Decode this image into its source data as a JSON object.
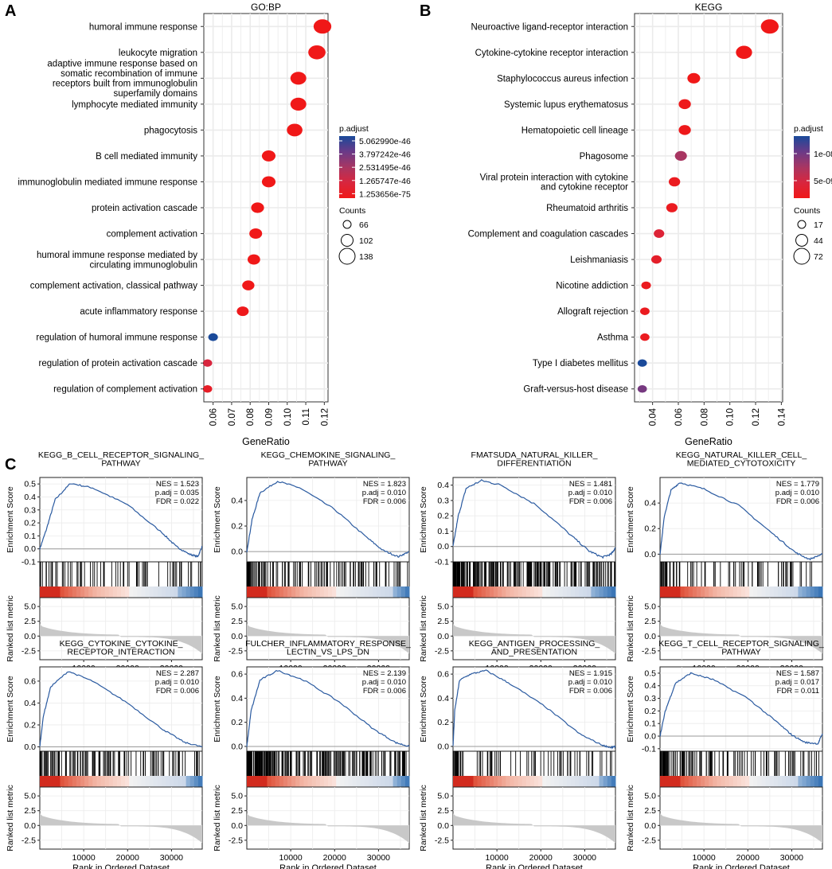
{
  "panels": {
    "A": {
      "letter": "A",
      "chart_data": {
        "type": "scatter",
        "title": "GO:BP",
        "xlabel": "GeneRatio",
        "xlim": [
          0.055,
          0.122
        ],
        "xticks": [
          0.06,
          0.07,
          0.08,
          0.09,
          0.1,
          0.11,
          0.12
        ],
        "xtick_labels": [
          "0.06",
          "0.07",
          "0.08",
          "0.09",
          "0.10",
          "0.11",
          "0.12"
        ],
        "terms": [
          {
            "label": "humoral immune response",
            "x": 0.119,
            "count": 138,
            "padj_rank": 0.0
          },
          {
            "label": "leukocyte migration",
            "x": 0.116,
            "count": 134,
            "padj_rank": 0.0
          },
          {
            "label": "adaptive immune response based on somatic recombination of immune receptors built from immunoglobulin superfamily domains",
            "x": 0.106,
            "count": 122,
            "padj_rank": 0.0
          },
          {
            "label": "lymphocyte mediated immunity",
            "x": 0.106,
            "count": 122,
            "padj_rank": 0.0
          },
          {
            "label": "phagocytosis",
            "x": 0.104,
            "count": 120,
            "padj_rank": 0.0
          },
          {
            "label": "B cell mediated immunity",
            "x": 0.09,
            "count": 103,
            "padj_rank": 0.0
          },
          {
            "label": "immunoglobulin mediated immune response",
            "x": 0.09,
            "count": 103,
            "padj_rank": 0.0
          },
          {
            "label": "protein activation cascade",
            "x": 0.084,
            "count": 97,
            "padj_rank": 0.0
          },
          {
            "label": "complement activation",
            "x": 0.083,
            "count": 96,
            "padj_rank": 0.0
          },
          {
            "label": "humoral immune response mediated by circulating immunoglobulin",
            "x": 0.082,
            "count": 94,
            "padj_rank": 0.0
          },
          {
            "label": "complement activation, classical pathway",
            "x": 0.079,
            "count": 91,
            "padj_rank": 0.0
          },
          {
            "label": "acute inflammatory response",
            "x": 0.076,
            "count": 88,
            "padj_rank": 0.02
          },
          {
            "label": "regulation of humoral immune response",
            "x": 0.06,
            "count": 69,
            "padj_rank": 1.0
          },
          {
            "label": "regulation of protein activation cascade",
            "x": 0.057,
            "count": 66,
            "padj_rank": 0.25
          },
          {
            "label": "regulation of complement activation",
            "x": 0.057,
            "count": 66,
            "padj_rank": 0.1
          }
        ],
        "legend_color": {
          "title": "p.adjust",
          "labels": [
            "5.062990e-46",
            "3.797242e-46",
            "2.531495e-46",
            "1.265747e-46",
            "1.253656e-75"
          ],
          "colors": [
            "#1a4a9a",
            "#6a3a88",
            "#a83662",
            "#d8263e",
            "#f01818"
          ]
        },
        "legend_size": {
          "title": "Counts",
          "values": [
            66,
            102,
            138
          ],
          "labels": [
            "66",
            "102",
            "138"
          ]
        }
      }
    },
    "B": {
      "letter": "B",
      "chart_data": {
        "type": "scatter",
        "title": "KEGG",
        "xlabel": "GeneRatio",
        "xlim": [
          0.026,
          0.141
        ],
        "xticks": [
          0.04,
          0.06,
          0.08,
          0.1,
          0.12,
          0.14
        ],
        "xtick_labels": [
          "0.04",
          "0.06",
          "0.08",
          "0.10",
          "0.12",
          "0.14"
        ],
        "terms": [
          {
            "label": "Neuroactive ligand-receptor interaction",
            "x": 0.131,
            "count": 72,
            "padj_rank": 0.0
          },
          {
            "label": "Cytokine-cytokine receptor interaction",
            "x": 0.111,
            "count": 62,
            "padj_rank": 0.0
          },
          {
            "label": "Staphylococcus aureus infection",
            "x": 0.072,
            "count": 40,
            "padj_rank": 0.0
          },
          {
            "label": "Systemic lupus erythematosus",
            "x": 0.065,
            "count": 36,
            "padj_rank": 0.02
          },
          {
            "label": "Hematopoietic cell lineage",
            "x": 0.065,
            "count": 36,
            "padj_rank": 0.02
          },
          {
            "label": "Phagosome",
            "x": 0.062,
            "count": 35,
            "padj_rank": 0.5
          },
          {
            "label": "Viral protein interaction with cytokine and cytokine receptor",
            "x": 0.057,
            "count": 31,
            "padj_rank": 0.05
          },
          {
            "label": "Rheumatoid arthritis",
            "x": 0.055,
            "count": 30,
            "padj_rank": 0.05
          },
          {
            "label": "Complement and coagulation cascades",
            "x": 0.045,
            "count": 25,
            "padj_rank": 0.2
          },
          {
            "label": "Leishmaniasis",
            "x": 0.043,
            "count": 24,
            "padj_rank": 0.12
          },
          {
            "label": "Nicotine addiction",
            "x": 0.035,
            "count": 19,
            "padj_rank": 0.05
          },
          {
            "label": "Allograft rejection",
            "x": 0.034,
            "count": 18,
            "padj_rank": 0.05
          },
          {
            "label": "Asthma",
            "x": 0.034,
            "count": 17,
            "padj_rank": 0.05
          },
          {
            "label": "Type I diabetes mellitus",
            "x": 0.032,
            "count": 17,
            "padj_rank": 1.0
          },
          {
            "label": "Graft-versus-host disease",
            "x": 0.032,
            "count": 17,
            "padj_rank": 0.7
          }
        ],
        "legend_color": {
          "title": "p.adjust",
          "labels": [
            "1e-08",
            "5e-09"
          ],
          "colors": [
            "#1a4a9a",
            "#6a3a88",
            "#a83662",
            "#d8263e",
            "#f01818"
          ]
        },
        "legend_size": {
          "title": "Counts",
          "values": [
            17,
            44,
            72
          ],
          "labels": [
            "17",
            "44",
            "72"
          ]
        }
      }
    },
    "C": {
      "letter": "C",
      "chart_data": [
        {
          "type": "line",
          "title": [
            "KEGG_B_CELL_RECEPTOR_SIGNALING_",
            "PATHWAY"
          ],
          "nes": "NES = 1.523",
          "padj": "p.adj = 0.035",
          "fdr": "FDR = 0.022",
          "ylim": [
            -0.1,
            0.55
          ],
          "yticks": [
            0.5,
            0.4,
            0.3,
            0.2,
            0.1,
            0.0,
            -0.1
          ],
          "ytick_labels": [
            "0.5",
            "0.4",
            "0.3",
            "0.2",
            "0.1",
            "0.0",
            "-0.1"
          ],
          "peak_rank": 7000,
          "peak_es": 0.505,
          "curve": [
            [
              0,
              0.0
            ],
            [
              1500,
              0.15
            ],
            [
              3500,
              0.38
            ],
            [
              7000,
              0.505
            ],
            [
              12000,
              0.47
            ],
            [
              20000,
              0.34
            ],
            [
              28000,
              0.12
            ],
            [
              31000,
              0.02
            ],
            [
              34000,
              -0.04
            ],
            [
              36000,
              -0.06
            ],
            [
              37000,
              0.02
            ]
          ],
          "bar_density": "medium",
          "blue_frac": 0.85
        },
        {
          "type": "line",
          "title": [
            "KEGG_CHEMOKINE_SIGNALING_",
            "PATHWAY"
          ],
          "nes": "NES = 1.823",
          "padj": "p.adj = 0.010",
          "fdr": "FDR = 0.006",
          "ylim": [
            -0.08,
            0.58
          ],
          "yticks": [
            0.4,
            0.2,
            0.0
          ],
          "ytick_labels": [
            "0.4",
            "0.2",
            "0.0"
          ],
          "peak_rank": 7000,
          "peak_es": 0.55,
          "curve": [
            [
              0,
              0.0
            ],
            [
              1200,
              0.25
            ],
            [
              3000,
              0.46
            ],
            [
              7000,
              0.55
            ],
            [
              12000,
              0.5
            ],
            [
              20000,
              0.33
            ],
            [
              27000,
              0.12
            ],
            [
              31000,
              0.01
            ],
            [
              34500,
              -0.04
            ],
            [
              37000,
              0.0
            ]
          ],
          "bar_density": "high",
          "blue_frac": 0.9
        },
        {
          "type": "line",
          "title": [
            "FMATSUDA_NATURAL_KILLER_",
            "DIFFERENTIATION"
          ],
          "nes": "NES = 1.481",
          "padj": "p.adj = 0.010",
          "fdr": "FDR = 0.006",
          "ylim": [
            -0.1,
            0.45
          ],
          "yticks": [
            0.4,
            0.3,
            0.2,
            0.1,
            0.0,
            -0.1
          ],
          "ytick_labels": [
            "0.4",
            "0.3",
            "0.2",
            "0.1",
            "0.0",
            "-0.1"
          ],
          "peak_rank": 6500,
          "peak_es": 0.43,
          "curve": [
            [
              0,
              0.0
            ],
            [
              1200,
              0.2
            ],
            [
              3000,
              0.38
            ],
            [
              6500,
              0.43
            ],
            [
              11000,
              0.4
            ],
            [
              19000,
              0.27
            ],
            [
              27000,
              0.07
            ],
            [
              31000,
              -0.03
            ],
            [
              34000,
              -0.07
            ],
            [
              36000,
              -0.05
            ],
            [
              37000,
              -0.01
            ]
          ],
          "bar_density": "very-high",
          "blue_frac": 0.85
        },
        {
          "type": "line",
          "title": [
            "KEGG_NATURAL_KILLER_CELL_",
            "MEDIATED_CYTOTOXICITY"
          ],
          "nes": "NES = 1.779",
          "padj": "p.adj = 0.010",
          "fdr": "FDR = 0.006",
          "ylim": [
            -0.06,
            0.6
          ],
          "yticks": [
            0.4,
            0.2,
            0.0
          ],
          "ytick_labels": [
            "0.4",
            "0.2",
            "0.0"
          ],
          "peak_rank": 4500,
          "peak_es": 0.56,
          "curve": [
            [
              0,
              0.0
            ],
            [
              1000,
              0.3
            ],
            [
              2500,
              0.5
            ],
            [
              4500,
              0.56
            ],
            [
              10000,
              0.51
            ],
            [
              18000,
              0.38
            ],
            [
              26000,
              0.15
            ],
            [
              31000,
              0.01
            ],
            [
              34000,
              -0.04
            ],
            [
              37000,
              0.0
            ]
          ],
          "bar_density": "medium",
          "blue_frac": 0.85
        },
        {
          "type": "line",
          "title": [
            "KEGG_CYTOKINE_CYTOKINE_",
            "RECEPTOR_INTERACTION"
          ],
          "nes": "NES = 2.287",
          "padj": "p.adj = 0.010",
          "fdr": "FDR = 0.006",
          "ylim": [
            -0.04,
            0.73
          ],
          "yticks": [
            0.6,
            0.4,
            0.2,
            0.0
          ],
          "ytick_labels": [
            "0.6",
            "0.4",
            "0.2",
            "0.0"
          ],
          "peak_rank": 6500,
          "peak_es": 0.69,
          "curve": [
            [
              0,
              0.0
            ],
            [
              800,
              0.28
            ],
            [
              2500,
              0.55
            ],
            [
              6500,
              0.69
            ],
            [
              12000,
              0.6
            ],
            [
              20000,
              0.4
            ],
            [
              28000,
              0.16
            ],
            [
              33000,
              0.04
            ],
            [
              37000,
              0.0
            ]
          ],
          "bar_density": "high",
          "blue_frac": 0.9
        },
        {
          "type": "line",
          "title": [
            "FULCHER_INFLAMMATORY_RESPONSE_",
            "LECTIN_VS_LPS_DN"
          ],
          "nes": "NES = 2.139",
          "padj": "p.adj = 0.010",
          "fdr": "FDR = 0.006",
          "ylim": [
            -0.04,
            0.66
          ],
          "yticks": [
            0.6,
            0.4,
            0.2,
            0.0
          ],
          "ytick_labels": [
            "0.6",
            "0.4",
            "0.2",
            "0.0"
          ],
          "peak_rank": 7000,
          "peak_es": 0.63,
          "curve": [
            [
              0,
              0.0
            ],
            [
              1000,
              0.3
            ],
            [
              3000,
              0.55
            ],
            [
              7000,
              0.63
            ],
            [
              13000,
              0.55
            ],
            [
              21000,
              0.37
            ],
            [
              29000,
              0.14
            ],
            [
              34000,
              0.03
            ],
            [
              37000,
              0.0
            ]
          ],
          "bar_density": "very-high",
          "blue_frac": 0.9
        },
        {
          "type": "line",
          "title": [
            "KEGG_ANTIGEN_PROCESSING_",
            "AND_PRESENTATION"
          ],
          "nes": "NES = 1.915",
          "padj": "p.adj = 0.010",
          "fdr": "FDR = 0.006",
          "ylim": [
            -0.04,
            0.66
          ],
          "yticks": [
            0.6,
            0.4,
            0.2,
            0.0
          ],
          "ytick_labels": [
            "0.6",
            "0.4",
            "0.2",
            "0.0"
          ],
          "peak_rank": 7500,
          "peak_es": 0.63,
          "curve": [
            [
              0,
              0.0
            ],
            [
              400,
              0.3
            ],
            [
              1500,
              0.55
            ],
            [
              4000,
              0.6
            ],
            [
              7500,
              0.63
            ],
            [
              13000,
              0.52
            ],
            [
              21000,
              0.33
            ],
            [
              29000,
              0.1
            ],
            [
              34000,
              0.01
            ],
            [
              36000,
              -0.01
            ],
            [
              37000,
              0.0
            ]
          ],
          "bar_density": "medium",
          "blue_frac": 0.9
        },
        {
          "type": "line",
          "title": [
            "KEGG_T_CELL_RECEPTOR_SIGNALING_",
            "PATHWAY"
          ],
          "nes": "NES = 1.587",
          "padj": "p.adj = 0.017",
          "fdr": "FDR = 0.011",
          "ylim": [
            -0.12,
            0.55
          ],
          "yticks": [
            0.5,
            0.4,
            0.3,
            0.2,
            0.1,
            0.0,
            -0.1
          ],
          "ytick_labels": [
            "0.5",
            "0.4",
            "0.3",
            "0.2",
            "0.1",
            "0.0",
            "-0.1"
          ],
          "peak_rank": 7000,
          "peak_es": 0.5,
          "curve": [
            [
              0,
              0.0
            ],
            [
              1200,
              0.2
            ],
            [
              3500,
              0.42
            ],
            [
              7000,
              0.5
            ],
            [
              12000,
              0.45
            ],
            [
              20000,
              0.3
            ],
            [
              27000,
              0.1
            ],
            [
              30000,
              0.01
            ],
            [
              33000,
              -0.05
            ],
            [
              36000,
              -0.06
            ],
            [
              37000,
              0.02
            ]
          ],
          "bar_density": "high",
          "blue_frac": 0.85
        }
      ],
      "common": {
        "xlabel": "Rank in Ordered Dataset",
        "ylabel_es": "Enrichment Score",
        "ylabel_rank": "Ranked list metric",
        "xticks": [
          10000,
          20000,
          30000
        ],
        "xtick_labels": [
          "10000",
          "20000",
          "30000"
        ],
        "xlim": [
          0,
          37000
        ],
        "metric_ylim": [
          -4,
          6.5
        ],
        "metric_yticks": [
          5.0,
          2.5,
          0.0,
          -2.5
        ],
        "metric_ytick_labels": [
          "5.0",
          "2.5",
          "0.0",
          "-2.5"
        ]
      }
    }
  },
  "colors": {
    "line": "#2a5aa0",
    "panel_bg": "#ffffff",
    "grid": "#ebebeb",
    "dot_bg": "#ebebeb",
    "metric_fill": "#c8c8c8",
    "zero_line": "#999999"
  }
}
